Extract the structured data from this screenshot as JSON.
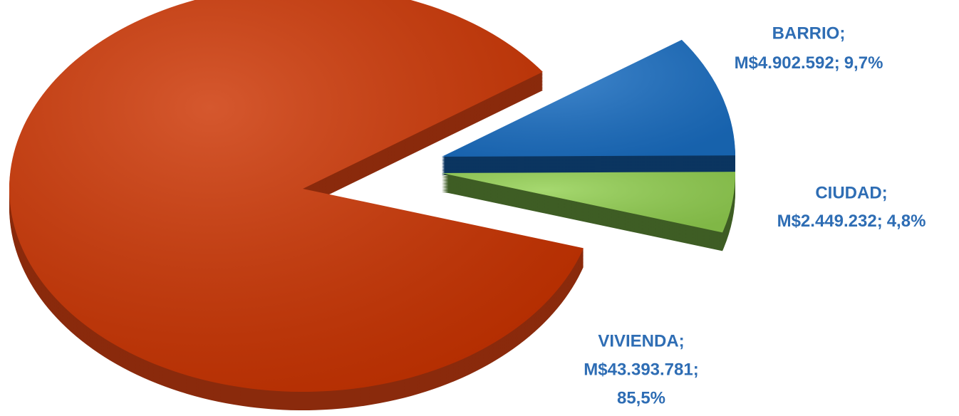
{
  "chart_data": {
    "type": "pie",
    "categories": [
      "VIVIENDA;",
      "BARRIO;",
      "CIUDAD;"
    ],
    "values": [
      43393781,
      4902592,
      2449232
    ],
    "value_labels": [
      "M$43.393.781;",
      "M$4.902.592;",
      "M$2.449.232;"
    ],
    "percents": [
      85.5,
      9.7,
      4.8
    ],
    "percent_labels": [
      "85,5%",
      "9,7%",
      "4,8%"
    ],
    "colors": [
      "#cc3300",
      "#1a6fc4",
      "#92d050"
    ],
    "side_colors": [
      "#8a2a0c",
      "#0b3560",
      "#3e5d24"
    ]
  }
}
